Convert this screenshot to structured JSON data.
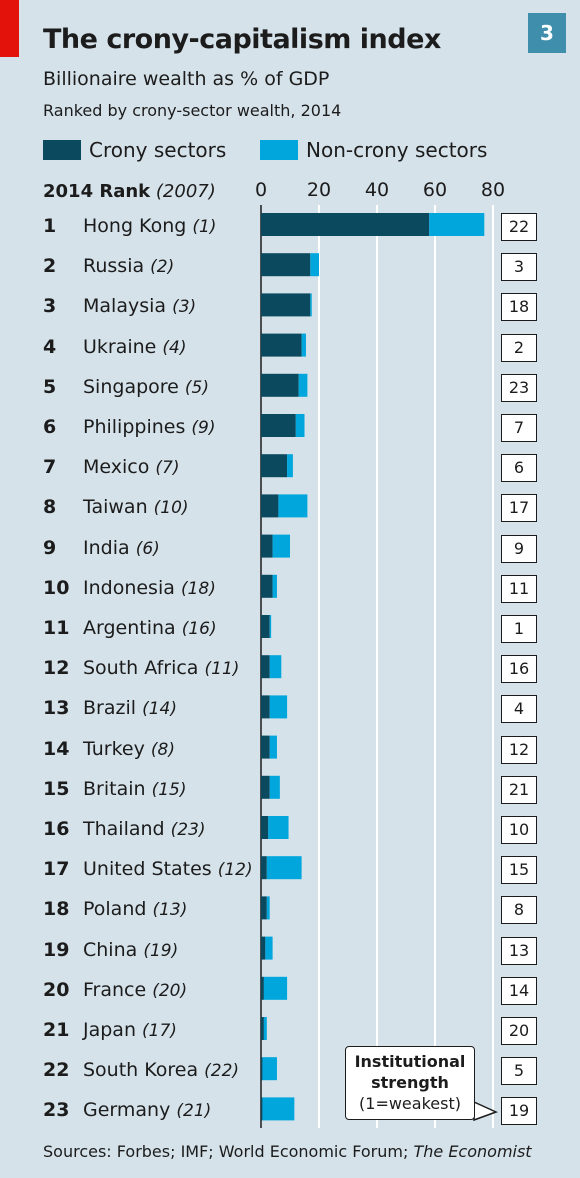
{
  "header": {
    "title": "The crony-capitalism index",
    "badge": "3",
    "subtitle": "Billionaire wealth as % of GDP",
    "subtitle2": "Ranked by crony-sector wealth, 2014",
    "rank_header_bold": "2014 Rank",
    "rank_header_prev": "(2007)",
    "source_prefix": "Sources: Forbes; IMF; World Economic Forum;",
    "source_italic": "The Economist"
  },
  "colors": {
    "crony": "#0b4a5e",
    "non_crony": "#00a6dc",
    "accent_red": "#e3120b",
    "background": "#d5e2ea"
  },
  "callout": {
    "title_line1": "Institutional",
    "title_line2": "strength",
    "note": "(1=weakest)"
  },
  "chart_data": {
    "type": "bar",
    "orientation": "horizontal",
    "stacked": true,
    "title": "The crony-capitalism index",
    "subtitle": "Billionaire wealth as % of GDP",
    "xlim": [
      0,
      80
    ],
    "xticks": [
      "0",
      "20",
      "40",
      "60",
      "80"
    ],
    "grid": true,
    "legend_position": "top-left",
    "series": [
      {
        "name": "Crony sectors",
        "values": [
          58,
          17,
          17,
          14,
          13,
          12,
          9,
          6,
          4,
          4,
          3,
          3,
          3,
          3,
          3,
          2.5,
          2,
          2,
          1.5,
          1,
          1,
          0.5,
          0.5
        ]
      },
      {
        "name": "Non-crony sectors",
        "values": [
          19,
          3,
          0.5,
          1.5,
          3,
          3,
          2,
          10,
          6,
          1.5,
          0.5,
          4,
          6,
          2.5,
          3.5,
          7,
          12,
          1,
          2.5,
          8,
          1,
          5,
          11
        ]
      }
    ],
    "rows": [
      {
        "rank": "1",
        "country": "Hong Kong",
        "rank_2007": "(1)",
        "institutional_strength": "22"
      },
      {
        "rank": "2",
        "country": "Russia",
        "rank_2007": "(2)",
        "institutional_strength": "3"
      },
      {
        "rank": "3",
        "country": "Malaysia",
        "rank_2007": "(3)",
        "institutional_strength": "18"
      },
      {
        "rank": "4",
        "country": "Ukraine",
        "rank_2007": "(4)",
        "institutional_strength": "2"
      },
      {
        "rank": "5",
        "country": "Singapore",
        "rank_2007": "(5)",
        "institutional_strength": "23"
      },
      {
        "rank": "6",
        "country": "Philippines",
        "rank_2007": "(9)",
        "institutional_strength": "7"
      },
      {
        "rank": "7",
        "country": "Mexico",
        "rank_2007": "(7)",
        "institutional_strength": "6"
      },
      {
        "rank": "8",
        "country": "Taiwan",
        "rank_2007": "(10)",
        "institutional_strength": "17"
      },
      {
        "rank": "9",
        "country": "India",
        "rank_2007": "(6)",
        "institutional_strength": "9"
      },
      {
        "rank": "10",
        "country": "Indonesia",
        "rank_2007": "(18)",
        "institutional_strength": "11"
      },
      {
        "rank": "11",
        "country": "Argentina",
        "rank_2007": "(16)",
        "institutional_strength": "1"
      },
      {
        "rank": "12",
        "country": "South Africa",
        "rank_2007": "(11)",
        "institutional_strength": "16"
      },
      {
        "rank": "13",
        "country": "Brazil",
        "rank_2007": "(14)",
        "institutional_strength": "4"
      },
      {
        "rank": "14",
        "country": "Turkey",
        "rank_2007": "(8)",
        "institutional_strength": "12"
      },
      {
        "rank": "15",
        "country": "Britain",
        "rank_2007": "(15)",
        "institutional_strength": "21"
      },
      {
        "rank": "16",
        "country": "Thailand",
        "rank_2007": "(23)",
        "institutional_strength": "10"
      },
      {
        "rank": "17",
        "country": "United States",
        "rank_2007": "(12)",
        "institutional_strength": "15"
      },
      {
        "rank": "18",
        "country": "Poland",
        "rank_2007": "(13)",
        "institutional_strength": "8"
      },
      {
        "rank": "19",
        "country": "China",
        "rank_2007": "(19)",
        "institutional_strength": "13"
      },
      {
        "rank": "20",
        "country": "France",
        "rank_2007": "(20)",
        "institutional_strength": "14"
      },
      {
        "rank": "21",
        "country": "Japan",
        "rank_2007": "(17)",
        "institutional_strength": "20"
      },
      {
        "rank": "22",
        "country": "South Korea",
        "rank_2007": "(22)",
        "institutional_strength": "5"
      },
      {
        "rank": "23",
        "country": "Germany",
        "rank_2007": "(21)",
        "institutional_strength": "19"
      }
    ]
  }
}
